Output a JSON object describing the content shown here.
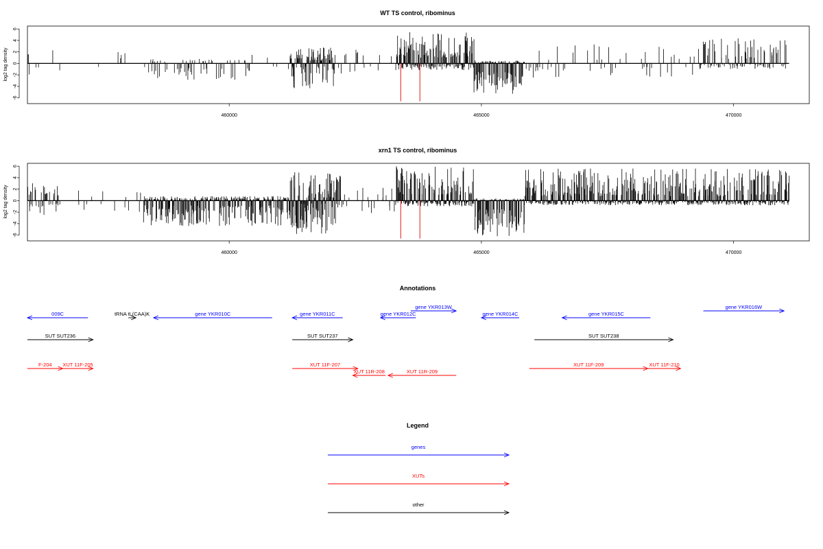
{
  "chart_data": [
    {
      "type": "bar",
      "title": "WT TS control, ribominus",
      "xlabel": "",
      "ylabel": "log2 tag density",
      "xlim": [
        456000,
        471500
      ],
      "ylim": [
        -7,
        6.5
      ],
      "xticks": [
        460000,
        465000,
        470000
      ],
      "yticks": [
        -6,
        -4,
        -2,
        0,
        2,
        4,
        6
      ],
      "x_tick_labels": [
        "460000",
        "465000",
        "470000"
      ],
      "y_tick_labels": [
        "-6",
        "-4",
        "-2",
        "0",
        "2",
        "4",
        "6"
      ],
      "grid": false,
      "highlight_color": "#e00000",
      "red_markers": [
        {
          "x": 463400,
          "y": -6.6
        },
        {
          "x": 463780,
          "y": -6.6
        }
      ],
      "regions": [
        {
          "start": 456000,
          "end": 456650,
          "density": 0.12,
          "pos": [
            0.8,
            2.6
          ],
          "neg": [
            0.4,
            2.0
          ]
        },
        {
          "start": 457200,
          "end": 458400,
          "density": 0.08,
          "pos": [
            0.8,
            2.2
          ],
          "neg": [
            0.6,
            2.4
          ]
        },
        {
          "start": 458400,
          "end": 460400,
          "density": 0.3,
          "pos": [
            0.3,
            0.8
          ],
          "neg": [
            0.8,
            3.0
          ]
        },
        {
          "start": 460400,
          "end": 461200,
          "density": 0.08,
          "pos": [
            0.5,
            1.5
          ],
          "neg": [
            0.5,
            1.5
          ]
        },
        {
          "start": 461200,
          "end": 462100,
          "density": 0.9,
          "pos": [
            0.5,
            2.8
          ],
          "neg": [
            0.5,
            4.4
          ]
        },
        {
          "start": 462100,
          "end": 463300,
          "density": 0.12,
          "pos": [
            0.6,
            2.4
          ],
          "neg": [
            0.5,
            1.8
          ]
        },
        {
          "start": 463300,
          "end": 464850,
          "density": 1.0,
          "pos": [
            1.0,
            5.6
          ],
          "neg": [
            0.2,
            1.2
          ]
        },
        {
          "start": 464850,
          "end": 465850,
          "density": 1.0,
          "pos": [
            0.1,
            0.5
          ],
          "neg": [
            1.5,
            5.5
          ]
        },
        {
          "start": 465850,
          "end": 469300,
          "density": 0.12,
          "pos": [
            0.6,
            3.5
          ],
          "neg": [
            0.6,
            2.6
          ]
        },
        {
          "start": 469300,
          "end": 471100,
          "density": 0.45,
          "pos": [
            0.8,
            4.4
          ],
          "neg": [
            0.2,
            1.0
          ]
        }
      ]
    },
    {
      "type": "bar",
      "title": "xrn1 TS control, ribominus",
      "xlabel": "",
      "ylabel": "log2 tag density",
      "xlim": [
        456000,
        471500
      ],
      "ylim": [
        -7,
        6.5
      ],
      "xticks": [
        460000,
        465000,
        470000
      ],
      "yticks": [
        -6,
        -4,
        -2,
        0,
        2,
        4,
        6
      ],
      "x_tick_labels": [
        "460000",
        "465000",
        "470000"
      ],
      "y_tick_labels": [
        "-6",
        "-4",
        "-2",
        "0",
        "2",
        "4",
        "6"
      ],
      "grid": false,
      "highlight_color": "#e00000",
      "red_markers": [
        {
          "x": 463400,
          "y": -6.6
        },
        {
          "x": 463780,
          "y": -6.6
        }
      ],
      "regions": [
        {
          "start": 456000,
          "end": 456650,
          "density": 0.6,
          "pos": [
            0.8,
            3.6
          ],
          "neg": [
            0.5,
            2.6
          ]
        },
        {
          "start": 457000,
          "end": 458300,
          "density": 0.1,
          "pos": [
            0.6,
            1.8
          ],
          "neg": [
            0.6,
            2.4
          ]
        },
        {
          "start": 458300,
          "end": 461200,
          "density": 0.9,
          "pos": [
            0.2,
            0.8
          ],
          "neg": [
            0.8,
            4.4
          ]
        },
        {
          "start": 461200,
          "end": 462200,
          "density": 1.0,
          "pos": [
            0.5,
            5.2
          ],
          "neg": [
            0.5,
            5.8
          ]
        },
        {
          "start": 462200,
          "end": 463300,
          "density": 0.2,
          "pos": [
            0.5,
            2.5
          ],
          "neg": [
            0.5,
            2.2
          ]
        },
        {
          "start": 463300,
          "end": 464850,
          "density": 1.0,
          "pos": [
            1.0,
            6.0
          ],
          "neg": [
            0.2,
            1.0
          ]
        },
        {
          "start": 464850,
          "end": 465850,
          "density": 1.0,
          "pos": [
            0.1,
            0.4
          ],
          "neg": [
            1.5,
            6.6
          ]
        },
        {
          "start": 465850,
          "end": 471100,
          "density": 0.95,
          "pos": [
            0.8,
            5.6
          ],
          "neg": [
            0.2,
            0.8
          ]
        }
      ]
    },
    {
      "type": "diagram",
      "title": "Annotations",
      "xlim": [
        456000,
        471500
      ],
      "features": [
        {
          "label": "009C",
          "start": 456000,
          "end": 457200,
          "track": 1,
          "class": "gene",
          "dir": "left"
        },
        {
          "label": "tRNA tL(CAA)K",
          "start": 458000,
          "end": 458150,
          "track": 1,
          "class": "other",
          "dir": "right"
        },
        {
          "label": "gene YKR010C",
          "start": 458500,
          "end": 460850,
          "track": 1,
          "class": "gene",
          "dir": "left"
        },
        {
          "label": "gene YKR011C",
          "start": 461250,
          "end": 462250,
          "track": 1,
          "class": "gene",
          "dir": "left"
        },
        {
          "label": "gene YKR012C",
          "start": 463000,
          "end": 463700,
          "track": 1,
          "class": "gene",
          "dir": "left"
        },
        {
          "label": "gene YKR013W",
          "start": 463600,
          "end": 464500,
          "track": 0,
          "class": "gene",
          "dir": "right"
        },
        {
          "label": "gene YKR014C",
          "start": 465000,
          "end": 465750,
          "track": 1,
          "class": "gene",
          "dir": "left"
        },
        {
          "label": "gene YKR015C",
          "start": 466600,
          "end": 468350,
          "track": 1,
          "class": "gene",
          "dir": "left"
        },
        {
          "label": "gene YKR016W",
          "start": 469400,
          "end": 471000,
          "track": 0,
          "class": "gene",
          "dir": "right"
        },
        {
          "label": "SUT SUT236",
          "start": 456000,
          "end": 457300,
          "track": 2,
          "class": "other",
          "dir": "right"
        },
        {
          "label": "SUT SUT237",
          "start": 461250,
          "end": 462450,
          "track": 2,
          "class": "other",
          "dir": "right"
        },
        {
          "label": "SUT SUT238",
          "start": 466050,
          "end": 468800,
          "track": 2,
          "class": "other",
          "dir": "right"
        },
        {
          "label": "F-204",
          "start": 456000,
          "end": 456700,
          "track": 3,
          "class": "xut",
          "dir": "right"
        },
        {
          "label": "XUT 11F-205",
          "start": 456700,
          "end": 457300,
          "track": 3,
          "class": "xut",
          "dir": "right"
        },
        {
          "label": "XUT 11F-207",
          "start": 461250,
          "end": 462550,
          "track": 3,
          "class": "xut",
          "dir": "right"
        },
        {
          "label": "XUT 11R-208",
          "start": 462450,
          "end": 463100,
          "track": 4,
          "class": "xut",
          "dir": "left"
        },
        {
          "label": "XUT 11R-209",
          "start": 463150,
          "end": 464500,
          "track": 4,
          "class": "xut",
          "dir": "left"
        },
        {
          "label": "XUT 11F-209",
          "start": 465950,
          "end": 468300,
          "track": 3,
          "class": "xut",
          "dir": "right"
        },
        {
          "label": "XUT 11F-210",
          "start": 468300,
          "end": 468950,
          "track": 3,
          "class": "xut",
          "dir": "right"
        }
      ]
    },
    {
      "type": "legend",
      "title": "Legend",
      "entries": [
        {
          "label": "genes",
          "color": "#0000ff"
        },
        {
          "label": "XUTs",
          "color": "#ff0000"
        },
        {
          "label": "other",
          "color": "#000000"
        }
      ]
    }
  ],
  "colors": {
    "gene": "#0000ff",
    "xut": "#ff0000",
    "other": "#000000"
  }
}
